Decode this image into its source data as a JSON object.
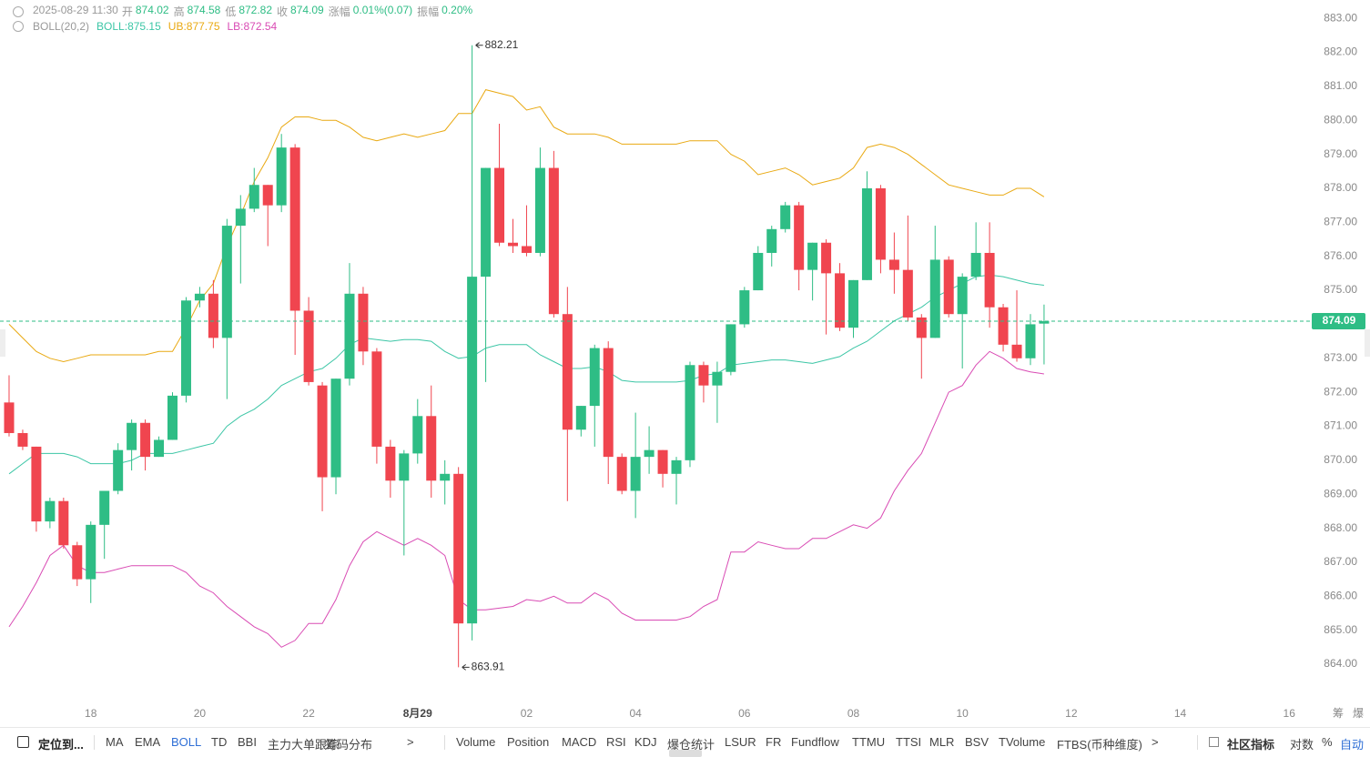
{
  "chart_data": {
    "type": "candlestick",
    "header": {
      "time": "2025-08-29 11:30",
      "fields": [
        {
          "label": "开",
          "value": "874.02"
        },
        {
          "label": "高",
          "value": "874.58"
        },
        {
          "label": "低",
          "value": "872.82"
        },
        {
          "label": "收",
          "value": "874.09"
        },
        {
          "label": "涨幅",
          "value": "0.01%(0.07)"
        },
        {
          "label": "振幅",
          "value": "0.20%"
        }
      ]
    },
    "indicator": {
      "name": "BOLL(20,2)",
      "items": [
        {
          "text": "BOLL:875.15",
          "color": "#3cc6a6"
        },
        {
          "text": "UB:877.75",
          "color": "#e9a912"
        },
        {
          "text": "LB:872.54",
          "color": "#d94bb4"
        }
      ]
    },
    "categories": [
      null,
      null,
      null,
      null,
      null,
      null,
      "18",
      null,
      null,
      null,
      null,
      null,
      null,
      null,
      "20",
      null,
      null,
      null,
      null,
      null,
      null,
      null,
      "22",
      null,
      null,
      null,
      null,
      null,
      null,
      null,
      "8月29",
      null,
      null,
      null,
      null,
      null,
      null,
      null,
      "02",
      null,
      null,
      null,
      null,
      null,
      null,
      null,
      "04",
      null,
      null,
      null,
      null,
      null,
      null,
      null,
      "06",
      null,
      null,
      null,
      null,
      null,
      null,
      null,
      "08",
      null,
      null,
      null,
      null,
      null,
      null,
      null,
      "10",
      null,
      null,
      null,
      null,
      null,
      null,
      null,
      "12",
      null,
      null,
      null,
      null,
      null,
      null,
      null,
      "14",
      null,
      null,
      null,
      null,
      null,
      null,
      null,
      "16",
      null
    ],
    "open": [
      871.7,
      870.8,
      870.4,
      868.2,
      868.8,
      867.5,
      866.5,
      868.1,
      869.1,
      870.3,
      871.1,
      870.1,
      870.6,
      871.9,
      874.7,
      874.9,
      873.6,
      876.9,
      877.4,
      878.1,
      877.5,
      879.2,
      874.4,
      872.2,
      869.5,
      872.4,
      874.9,
      873.2,
      870.4,
      869.4,
      870.2,
      871.3,
      869.4,
      869.6,
      865.2,
      875.4,
      878.6,
      876.4,
      876.3,
      876.1,
      878.6,
      874.3,
      870.9,
      871.6,
      873.3,
      870.1,
      869.1,
      870.1,
      870.3,
      869.6,
      870.0,
      872.8,
      872.2,
      872.6,
      874.0,
      875.0,
      876.1,
      876.8,
      877.5,
      875.6,
      876.4,
      875.5,
      873.9,
      875.3,
      878.0,
      875.9,
      875.6,
      874.2,
      873.6,
      875.9,
      874.3,
      875.4,
      876.1,
      874.5,
      873.4,
      873.0,
      874.02,
      null,
      null,
      null,
      null,
      null,
      null,
      null,
      null,
      null,
      null,
      null,
      null,
      null,
      null,
      null,
      null,
      null,
      null,
      null
    ],
    "high": [
      872.5,
      870.9,
      870.4,
      868.9,
      868.9,
      867.6,
      868.2,
      869.1,
      870.5,
      871.2,
      871.2,
      870.7,
      872.0,
      874.8,
      875.1,
      875.3,
      877.1,
      877.8,
      878.6,
      878.1,
      879.6,
      879.3,
      874.8,
      872.3,
      872.4,
      875.8,
      875.1,
      873.3,
      870.6,
      870.3,
      871.8,
      872.2,
      870.0,
      869.8,
      882.21,
      878.6,
      879.9,
      877.1,
      877.5,
      879.2,
      879.1,
      875.1,
      871.6,
      873.4,
      873.5,
      870.2,
      871.4,
      871.0,
      870.3,
      870.1,
      872.9,
      872.9,
      872.9,
      874.0,
      875.1,
      876.3,
      876.9,
      877.6,
      877.6,
      876.4,
      876.5,
      875.8,
      875.3,
      878.5,
      878.1,
      876.7,
      877.2,
      874.3,
      876.9,
      876.0,
      875.5,
      877.0,
      877.0,
      874.6,
      875.0,
      874.3,
      874.58,
      null,
      null,
      null,
      null,
      null,
      null,
      null,
      null,
      null,
      null,
      null,
      null,
      null,
      null,
      null,
      null,
      null,
      null,
      null
    ],
    "low": [
      870.7,
      870.3,
      867.9,
      868.0,
      867.4,
      866.3,
      865.8,
      867.1,
      869.0,
      869.7,
      869.7,
      870.1,
      870.6,
      871.7,
      874.5,
      873.3,
      871.8,
      875.2,
      877.3,
      876.3,
      877.3,
      873.1,
      872.2,
      868.5,
      869.0,
      872.2,
      872.8,
      869.9,
      868.9,
      867.2,
      869.9,
      868.9,
      868.7,
      863.91,
      864.7,
      872.3,
      876.3,
      876.1,
      876.0,
      876.0,
      874.2,
      868.8,
      870.7,
      870.4,
      869.3,
      869.0,
      868.3,
      869.6,
      869.2,
      868.7,
      869.8,
      871.7,
      871.1,
      872.5,
      873.9,
      875.0,
      875.7,
      876.7,
      875.0,
      874.7,
      873.7,
      873.8,
      873.6,
      875.3,
      875.5,
      874.9,
      874.1,
      872.4,
      873.6,
      874.2,
      872.7,
      875.3,
      873.9,
      873.2,
      872.9,
      872.8,
      872.82,
      null,
      null,
      null,
      null,
      null,
      null,
      null,
      null,
      null,
      null,
      null,
      null,
      null,
      null,
      null,
      null,
      null,
      null,
      null
    ],
    "close": [
      870.8,
      870.4,
      868.2,
      868.8,
      867.5,
      866.5,
      868.1,
      869.1,
      870.3,
      871.1,
      870.1,
      870.6,
      871.9,
      874.7,
      874.9,
      873.6,
      876.9,
      877.4,
      878.1,
      877.5,
      879.2,
      874.4,
      872.3,
      869.5,
      872.4,
      874.9,
      873.2,
      870.4,
      869.4,
      870.2,
      871.3,
      869.4,
      869.6,
      865.2,
      875.4,
      878.6,
      876.4,
      876.3,
      876.1,
      878.6,
      874.3,
      870.9,
      871.6,
      873.3,
      870.1,
      869.1,
      870.1,
      870.3,
      869.6,
      870.0,
      872.8,
      872.2,
      872.6,
      874.0,
      875.0,
      876.1,
      876.8,
      877.5,
      875.6,
      876.4,
      875.5,
      873.9,
      875.3,
      878.0,
      875.9,
      875.6,
      874.2,
      873.6,
      875.9,
      874.3,
      875.4,
      876.1,
      874.5,
      873.4,
      873.0,
      874.0,
      874.09,
      null,
      null,
      null,
      null,
      null,
      null,
      null,
      null,
      null,
      null,
      null,
      null,
      null,
      null,
      null,
      null,
      null,
      null,
      null
    ],
    "up_color": "#2ebd85",
    "down_color": "#f0454f",
    "series": [
      {
        "name": "UB",
        "color": "#e9a912",
        "values": [
          874.0,
          873.6,
          873.2,
          873.0,
          872.9,
          873.0,
          873.1,
          873.1,
          873.1,
          873.1,
          873.1,
          873.2,
          873.2,
          873.9,
          874.7,
          875.2,
          876.3,
          877.2,
          878.2,
          878.9,
          879.8,
          880.1,
          880.1,
          880.0,
          880.0,
          879.8,
          879.5,
          879.4,
          879.5,
          879.6,
          879.5,
          879.6,
          879.7,
          880.2,
          880.2,
          880.9,
          880.8,
          880.7,
          880.3,
          880.4,
          879.8,
          879.6,
          879.6,
          879.6,
          879.5,
          879.3,
          879.3,
          879.3,
          879.3,
          879.3,
          879.4,
          879.4,
          879.4,
          879.0,
          878.8,
          878.4,
          878.5,
          878.6,
          878.4,
          878.1,
          878.2,
          878.3,
          878.6,
          879.2,
          879.3,
          879.2,
          879.0,
          878.7,
          878.4,
          878.1,
          878.0,
          877.9,
          877.8,
          877.8,
          878.0,
          878.0,
          877.75,
          null,
          null,
          null,
          null,
          null,
          null,
          null,
          null,
          null,
          null,
          null,
          null,
          null,
          null,
          null,
          null,
          null,
          null,
          null
        ]
      },
      {
        "name": "BOLL",
        "color": "#3cc6a6",
        "values": [
          869.6,
          869.9,
          870.2,
          870.2,
          870.2,
          870.1,
          869.9,
          869.9,
          869.9,
          870.0,
          870.2,
          870.2,
          870.2,
          870.3,
          870.4,
          870.5,
          871.0,
          871.3,
          871.5,
          871.8,
          872.2,
          872.4,
          872.6,
          872.7,
          873.0,
          873.4,
          873.6,
          873.55,
          873.5,
          873.55,
          873.55,
          873.5,
          873.2,
          873.0,
          873.05,
          873.3,
          873.4,
          873.4,
          873.4,
          873.1,
          872.9,
          872.7,
          872.7,
          872.75,
          872.6,
          872.35,
          872.3,
          872.3,
          872.3,
          872.3,
          872.35,
          872.5,
          872.55,
          872.8,
          872.85,
          872.9,
          872.95,
          872.95,
          872.9,
          872.85,
          872.95,
          873.05,
          873.3,
          873.5,
          873.8,
          874.1,
          874.3,
          874.5,
          874.8,
          875.0,
          875.2,
          875.4,
          875.45,
          875.4,
          875.3,
          875.2,
          875.15,
          null,
          null,
          null,
          null,
          null,
          null,
          null,
          null,
          null,
          null,
          null,
          null,
          null,
          null,
          null,
          null,
          null,
          null,
          null
        ]
      },
      {
        "name": "LB",
        "color": "#d94bb4",
        "values": [
          865.1,
          865.7,
          866.4,
          867.2,
          867.5,
          866.9,
          866.7,
          866.7,
          866.8,
          866.9,
          866.9,
          866.9,
          866.9,
          866.7,
          866.3,
          866.1,
          865.7,
          865.4,
          865.1,
          864.9,
          864.5,
          864.7,
          865.2,
          865.2,
          865.9,
          866.9,
          867.6,
          867.9,
          867.7,
          867.5,
          867.7,
          867.5,
          867.2,
          865.9,
          865.6,
          865.6,
          865.65,
          865.7,
          865.9,
          865.85,
          866.0,
          865.8,
          865.8,
          866.1,
          865.9,
          865.5,
          865.3,
          865.3,
          865.3,
          865.3,
          865.4,
          865.7,
          865.9,
          867.3,
          867.3,
          867.6,
          867.5,
          867.4,
          867.4,
          867.7,
          867.7,
          867.9,
          868.1,
          868.0,
          868.3,
          869.1,
          869.7,
          870.2,
          871.1,
          872.0,
          872.2,
          872.8,
          873.2,
          873.0,
          872.7,
          872.6,
          872.54,
          null,
          null,
          null,
          null,
          null,
          null,
          null,
          null,
          null,
          null,
          null,
          null,
          null,
          null,
          null,
          null,
          null,
          null,
          null
        ]
      }
    ],
    "annotations": [
      {
        "value": 882.21
      },
      {
        "value": 863.91
      }
    ],
    "last_price": {
      "value": 874.09,
      "color": "#2ebd85"
    },
    "ylim": [
      862.93,
      883.54
    ],
    "yticks": [
      {
        "value": 864,
        "label": "864.00"
      },
      {
        "value": 865,
        "label": "865.00"
      },
      {
        "value": 866,
        "label": "866.00"
      },
      {
        "value": 867,
        "label": "867.00"
      },
      {
        "value": 868,
        "label": "868.00"
      },
      {
        "value": 869,
        "label": "869.00"
      },
      {
        "value": 870,
        "label": "870.00"
      },
      {
        "value": 871,
        "label": "871.00"
      },
      {
        "value": 872,
        "label": "872.00"
      },
      {
        "value": 873,
        "label": "873.00"
      },
      {
        "value": 874,
        "label": "874.00"
      },
      {
        "value": 875,
        "label": "875.00"
      },
      {
        "value": 876,
        "label": "876.00"
      },
      {
        "value": 877,
        "label": "877.00"
      },
      {
        "value": 878,
        "label": "878.00"
      },
      {
        "value": 879,
        "label": "879.00"
      },
      {
        "value": 880,
        "label": "880.00"
      },
      {
        "value": 881,
        "label": "881.00"
      },
      {
        "value": 882,
        "label": "882.00"
      },
      {
        "value": 883,
        "label": "883.00"
      }
    ],
    "axis_corner": [
      "筹",
      "爆"
    ],
    "toolbar": {
      "locate": "定位到...",
      "active": "BOLL",
      "groups": [
        [
          "MA",
          "EMA",
          "BOLL",
          "TD",
          "BBI",
          "主力大单跟踪",
          "筹码分布",
          ">"
        ],
        [
          "Volume",
          "Position",
          "MACD",
          "RSI",
          "KDJ",
          "爆仓统计",
          "LSUR",
          "FR",
          "Fundflow",
          "TTMU",
          "TTSI",
          "MLR",
          "BSV",
          "TVolume",
          "FTBS(币种维度)",
          ">"
        ]
      ],
      "community": "社区指标",
      "options": [
        "对数",
        "%",
        "自动"
      ]
    }
  }
}
